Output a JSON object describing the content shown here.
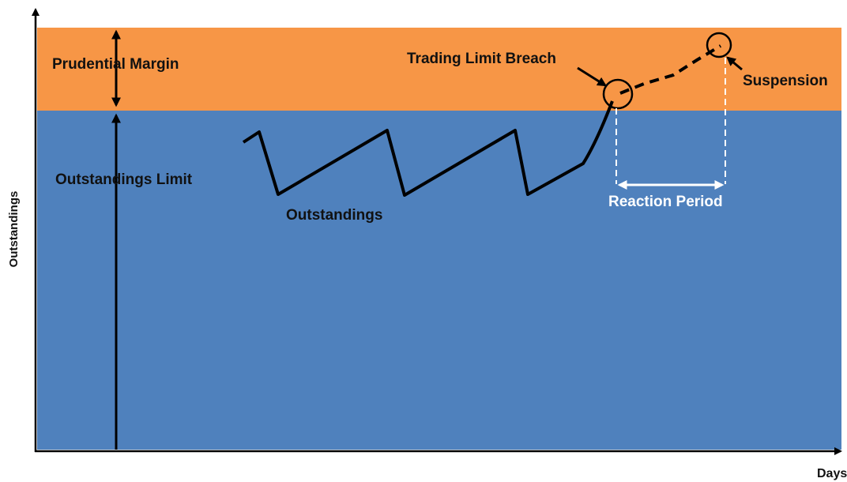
{
  "axes": {
    "y_label": "Outstandings",
    "x_label": "Days"
  },
  "labels": {
    "prudential_margin": "Prudential Margin",
    "outstandings_limit": "Outstandings Limit",
    "outstandings": "Outstandings",
    "breach": "Trading Limit Breach",
    "suspension": "Suspension",
    "reaction_period": "Reaction Period"
  }
}
